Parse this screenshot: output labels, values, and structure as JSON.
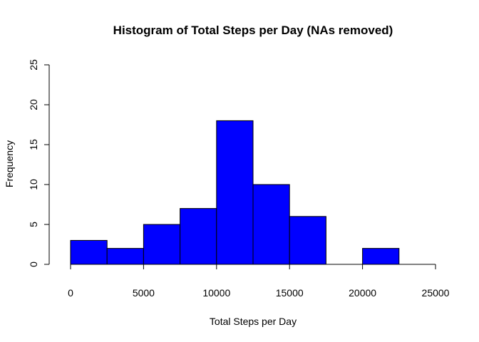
{
  "chart_data": {
    "type": "bar",
    "title": "Histogram of Total Steps per Day (NAs removed)",
    "xlabel": "Total Steps per Day",
    "ylabel": "Frequency",
    "bins": [
      {
        "from": 0,
        "to": 2500,
        "count": 3
      },
      {
        "from": 2500,
        "to": 5000,
        "count": 2
      },
      {
        "from": 5000,
        "to": 7500,
        "count": 5
      },
      {
        "from": 7500,
        "to": 10000,
        "count": 7
      },
      {
        "from": 10000,
        "to": 12500,
        "count": 18
      },
      {
        "from": 12500,
        "to": 15000,
        "count": 10
      },
      {
        "from": 15000,
        "to": 17500,
        "count": 6
      },
      {
        "from": 17500,
        "to": 20000,
        "count": 0
      },
      {
        "from": 20000,
        "to": 22500,
        "count": 2
      },
      {
        "from": 22500,
        "to": 25000,
        "count": 0
      }
    ],
    "xlim": [
      0,
      25000
    ],
    "ylim": [
      0,
      25
    ],
    "x_ticks": [
      0,
      5000,
      10000,
      15000,
      20000,
      25000
    ],
    "y_ticks": [
      0,
      5,
      10,
      15,
      20,
      25
    ],
    "bar_color": "#0000ff",
    "grid": false,
    "legend": "none"
  }
}
